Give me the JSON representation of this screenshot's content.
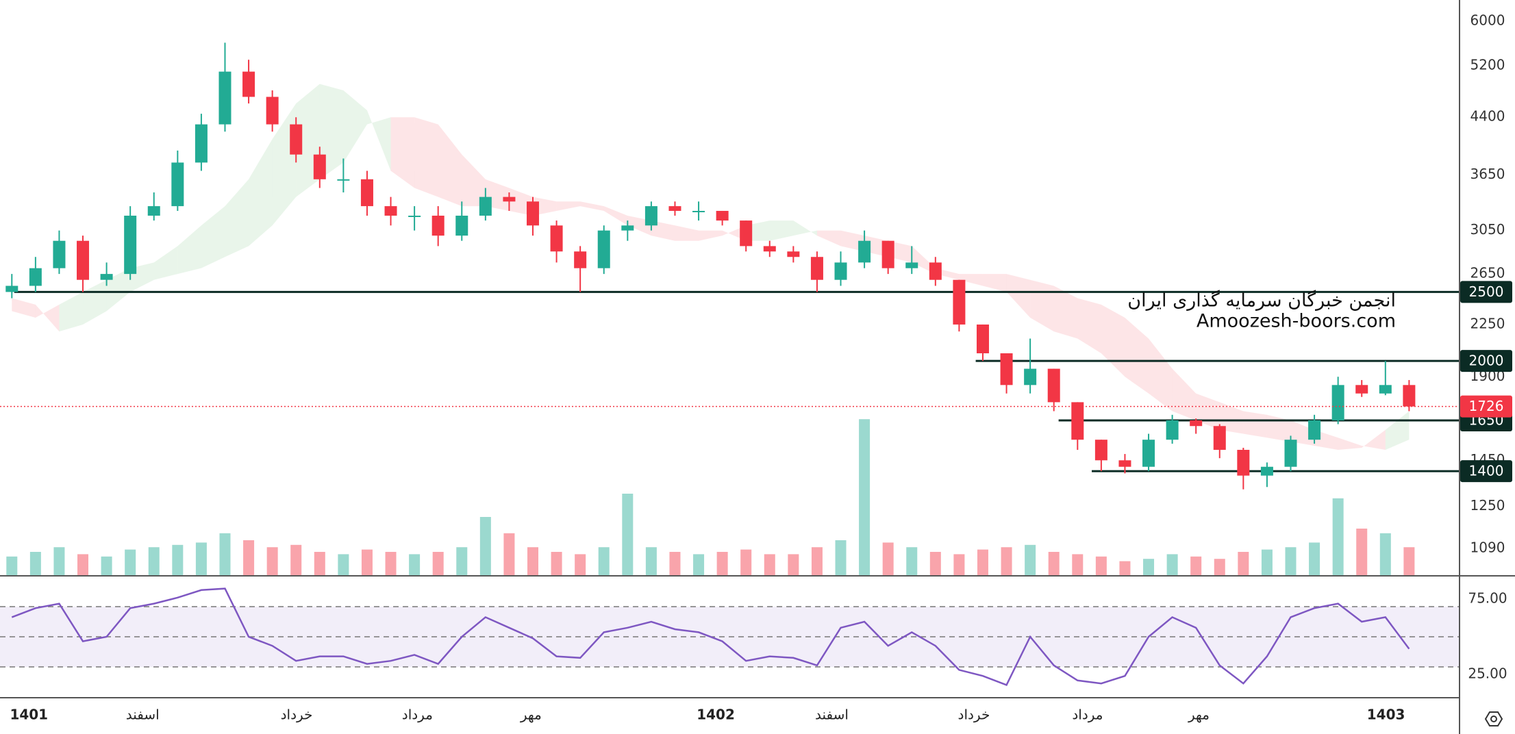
{
  "chart_data": [
    {
      "type": "candlestick",
      "log_scale": true,
      "xlim": [
        0,
        61.6
      ],
      "ylim": [
        1000,
        6430
      ],
      "yticks": [
        6000,
        5200,
        4400,
        3650,
        3050,
        2650,
        2250,
        1900,
        1450,
        1250,
        1090
      ],
      "xticks": [
        {
          "value": 0.5,
          "label": "1401"
        },
        {
          "value": 5.3,
          "label": "اسفند"
        },
        {
          "value": 11.8,
          "label": "خرداد"
        },
        {
          "value": 16.9,
          "label": "مرداد"
        },
        {
          "value": 21.7,
          "label": "مهر"
        },
        {
          "value": 29.5,
          "label": "1402"
        },
        {
          "value": 34.4,
          "label": "اسفند"
        },
        {
          "value": 40.4,
          "label": "خرداد"
        },
        {
          "value": 45.2,
          "label": "مرداد"
        },
        {
          "value": 49.9,
          "label": "مهر"
        },
        {
          "value": 57.8,
          "label": "1403"
        }
      ],
      "up_color": "#22ab94",
      "down_color": "#f23645",
      "open": [
        2500,
        2550,
        2700,
        2950,
        2600,
        2650,
        3200,
        3300,
        3800,
        4300,
        5100,
        4700,
        4300,
        3900,
        3600,
        3600,
        3300,
        3200,
        3200,
        3000,
        3200,
        3400,
        3350,
        3100,
        2850,
        2700,
        3050,
        3100,
        3300,
        3250,
        3250,
        3150,
        2900,
        2850,
        2800,
        2600,
        2750,
        2950,
        2700,
        2750,
        2600,
        2250,
        2050,
        1850,
        1950,
        1750,
        1550,
        1450,
        1420,
        1550,
        1650,
        1620,
        1500,
        1380,
        1420,
        1550,
        1650,
        1850,
        1800,
        1850
      ],
      "high": [
        2650,
        2800,
        3050,
        3000,
        2750,
        3300,
        3450,
        3950,
        4450,
        5600,
        5300,
        4800,
        4400,
        4000,
        3850,
        3700,
        3400,
        3300,
        3300,
        3350,
        3500,
        3450,
        3400,
        3150,
        2900,
        3100,
        3150,
        3350,
        3350,
        3350,
        3250,
        3150,
        2950,
        2900,
        2850,
        2850,
        3050,
        2950,
        2900,
        2800,
        2600,
        2250,
        2050,
        2150,
        1950,
        1750,
        1550,
        1480,
        1580,
        1680,
        1660,
        1630,
        1510,
        1440,
        1570,
        1680,
        1900,
        1880,
        2000,
        1880
      ],
      "low": [
        2450,
        2500,
        2650,
        2500,
        2550,
        2600,
        3150,
        3250,
        3700,
        4200,
        4600,
        4200,
        3800,
        3500,
        3450,
        3200,
        3100,
        3050,
        2900,
        2950,
        3150,
        3250,
        3000,
        2750,
        2500,
        2650,
        2950,
        3050,
        3200,
        3150,
        3100,
        2850,
        2800,
        2750,
        2500,
        2550,
        2700,
        2650,
        2650,
        2550,
        2200,
        2000,
        1800,
        1800,
        1700,
        1500,
        1400,
        1390,
        1400,
        1530,
        1580,
        1460,
        1320,
        1330,
        1400,
        1530,
        1630,
        1780,
        1790,
        1700
      ],
      "close": [
        2550,
        2700,
        2950,
        2600,
        2650,
        3200,
        3300,
        3800,
        4300,
        5100,
        4700,
        4300,
        3900,
        3600,
        3600,
        3300,
        3200,
        3200,
        3000,
        3200,
        3400,
        3350,
        3100,
        2850,
        2700,
        3050,
        3100,
        3300,
        3250,
        3250,
        3150,
        2900,
        2850,
        2800,
        2600,
        2750,
        2950,
        2700,
        2750,
        2600,
        2250,
        2050,
        1850,
        1950,
        1750,
        1550,
        1450,
        1420,
        1550,
        1650,
        1620,
        1500,
        1380,
        1420,
        1550,
        1650,
        1850,
        1800,
        1850,
        1726
      ],
      "volume_ylim": [
        0,
        100
      ],
      "volume": [
        8,
        10,
        12,
        9,
        8,
        11,
        12,
        13,
        14,
        18,
        15,
        12,
        13,
        10,
        9,
        11,
        10,
        9,
        10,
        12,
        25,
        18,
        12,
        10,
        9,
        12,
        35,
        12,
        10,
        9,
        10,
        11,
        9,
        9,
        12,
        15,
        67,
        14,
        12,
        10,
        9,
        11,
        12,
        13,
        10,
        9,
        8,
        6,
        7,
        9,
        8,
        7,
        10,
        11,
        12,
        14,
        33,
        20,
        18,
        12
      ],
      "cloud": {
        "span_a": [
          2350,
          2300,
          2400,
          2500,
          2600,
          2700,
          2750,
          2900,
          3100,
          3300,
          3600,
          4100,
          4600,
          4900,
          4800,
          4500,
          3700,
          3500,
          3400,
          3300,
          3300,
          3250,
          3200,
          3250,
          3300,
          3250,
          3100,
          3000,
          2950,
          2950,
          3000,
          3100,
          3150,
          3150,
          3000,
          2900,
          2850,
          2800,
          2750,
          2650,
          2600,
          2550,
          2500,
          2300,
          2200,
          2150,
          2050,
          1900,
          1800,
          1700,
          1650,
          1600,
          1580,
          1560,
          1540,
          1520,
          1500,
          1510,
          1600,
          1700
        ],
        "span_b": [
          2450,
          2400,
          2200,
          2250,
          2350,
          2500,
          2600,
          2650,
          2700,
          2800,
          2900,
          3100,
          3400,
          3600,
          3800,
          4300,
          4400,
          4400,
          4300,
          3900,
          3600,
          3500,
          3400,
          3350,
          3350,
          3300,
          3200,
          3150,
          3100,
          3050,
          3050,
          2950,
          2950,
          3000,
          3050,
          3050,
          3000,
          2950,
          2900,
          2700,
          2650,
          2650,
          2650,
          2600,
          2550,
          2450,
          2400,
          2300,
          2150,
          1950,
          1800,
          1750,
          1700,
          1680,
          1650,
          1600,
          1560,
          1520,
          1500,
          1550
        ]
      },
      "levels": [
        2500,
        2000,
        1650,
        1400
      ],
      "level_from": [
        0.6,
        41.2,
        44.7,
        46.1
      ],
      "watermark": [
        "انجمن خبرگان سرمایه گذاری ایران",
        "Amoozesh-boors.com"
      ]
    },
    {
      "type": "line",
      "color": "#7e57c2",
      "xlim": [
        0,
        61.6
      ],
      "ylim": [
        10,
        90
      ],
      "yticks": [
        {
          "value": 75,
          "label": "75.00"
        },
        {
          "value": 25,
          "label": "25.00"
        }
      ],
      "levels": [
        70,
        50,
        30
      ],
      "values": [
        63,
        69,
        72,
        47,
        50,
        69,
        72,
        76,
        81,
        82,
        50,
        44,
        34,
        37,
        37,
        32,
        34,
        38,
        32,
        50,
        63,
        56,
        49,
        37,
        36,
        53,
        56,
        60,
        55,
        53,
        47,
        34,
        37,
        36,
        31,
        56,
        60,
        44,
        53,
        44,
        28,
        24,
        18,
        50,
        31,
        21,
        19,
        24,
        50,
        63,
        56,
        31,
        19,
        37,
        63,
        69,
        72,
        60,
        63,
        42
      ]
    }
  ]
}
